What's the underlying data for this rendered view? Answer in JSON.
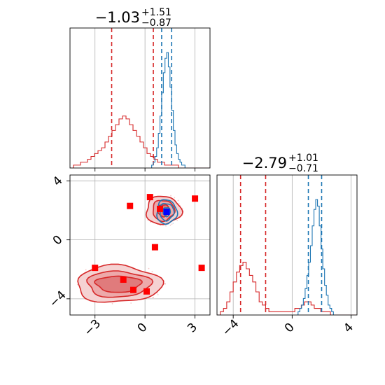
{
  "chart_data": {
    "type": "corner",
    "parameters": [
      {
        "title_main": "−1.03",
        "title_sup": "+1.51",
        "title_sub": "−0.87"
      },
      {
        "title_main": "−2.79",
        "title_sup": "+1.01",
        "title_sub": "−0.71"
      }
    ],
    "axes": {
      "x": {
        "range": [
          -4.5,
          3.9
        ],
        "ticks": [
          -3,
          0,
          3
        ],
        "tick_labels": [
          "−3",
          "0",
          "3"
        ]
      },
      "y": {
        "range": [
          -5.1,
          4.4
        ],
        "ticks": [
          -4,
          0,
          4
        ],
        "tick_labels": [
          "−4",
          "0",
          "4"
        ]
      },
      "y_marginal": {
        "range": [
          -5.1,
          4.4
        ],
        "ticks": [
          -4,
          0,
          4
        ],
        "tick_labels": [
          "−4",
          "0",
          "4"
        ]
      }
    },
    "grid": true,
    "colors": {
      "red": "#d62728",
      "blue": "#1f77b4",
      "marker_red": "#ff0000",
      "marker_blue": "#0000ff",
      "grid": "#b0b0b0"
    },
    "series": [
      {
        "color": "#d62728",
        "quantiles_x": [
          -2.0,
          0.5
        ],
        "quantiles_y": [
          -3.5,
          -1.8
        ],
        "hist_x": {
          "edges_start": -4.5,
          "bin": 0.21,
          "counts": [
            0,
            1,
            1,
            2,
            2,
            3,
            4,
            5,
            6,
            7,
            9,
            11,
            13,
            15,
            17,
            18,
            17,
            15,
            13,
            11,
            9,
            7,
            5,
            4,
            3,
            2,
            2,
            1,
            1,
            1,
            1,
            0,
            0,
            0,
            0,
            0,
            0,
            0,
            0,
            0
          ]
        },
        "hist_y": {
          "edges_start": -5.1,
          "bin": 0.22,
          "counts": [
            0,
            1,
            2,
            4,
            7,
            10,
            13,
            15,
            16,
            14,
            12,
            10,
            7,
            4,
            3,
            2,
            1,
            1,
            1,
            1,
            1,
            1,
            1,
            1,
            2,
            2,
            3,
            4,
            4,
            3,
            2,
            2,
            1,
            1,
            1,
            0,
            0,
            0,
            0,
            0,
            0,
            0,
            0
          ]
        },
        "clusters": [
          {
            "cx": -1.6,
            "cy": -3.0,
            "rx": [
              1.35,
              1.9,
              2.55
            ],
            "ry": [
              0.55,
              0.88,
              1.25
            ]
          },
          {
            "cx": 1.1,
            "cy": 2.0,
            "rx": [
              0.35,
              0.65,
              1.05
            ],
            "ry": [
              0.4,
              0.7,
              0.95
            ]
          }
        ],
        "markers": [
          [
            0.3,
            2.9
          ],
          [
            -0.9,
            2.3
          ],
          [
            0.9,
            2.1
          ],
          [
            3.0,
            2.8
          ],
          [
            0.6,
            -0.5
          ],
          [
            -3.0,
            -1.9
          ],
          [
            -1.3,
            -2.7
          ],
          [
            -0.7,
            -3.4
          ],
          [
            0.1,
            -3.5
          ],
          [
            3.4,
            -1.9
          ]
        ]
      },
      {
        "color": "#1f77b4",
        "quantiles_x": [
          1.0,
          1.6
        ],
        "quantiles_y": [
          1.1,
          2.0
        ],
        "hist_x": {
          "edges_start": 0.4,
          "bin": 0.1,
          "counts": [
            1,
            2,
            4,
            7,
            12,
            18,
            26,
            33,
            38,
            40,
            35,
            28,
            20,
            13,
            8,
            5,
            3,
            2,
            1,
            1
          ]
        },
        "hist_y": {
          "edges_start": 0.4,
          "bin": 0.12,
          "counts": [
            1,
            2,
            3,
            5,
            8,
            12,
            16,
            21,
            27,
            32,
            35,
            33,
            27,
            20,
            14,
            9,
            6,
            3,
            2,
            1
          ]
        },
        "clusters": [
          {
            "cx": 1.3,
            "cy": 1.9,
            "rx": [
              0.22,
              0.42,
              0.6
            ],
            "ry": [
              0.3,
              0.58,
              0.82
            ]
          }
        ],
        "markers": [
          [
            1.3,
            1.9
          ]
        ]
      }
    ]
  }
}
